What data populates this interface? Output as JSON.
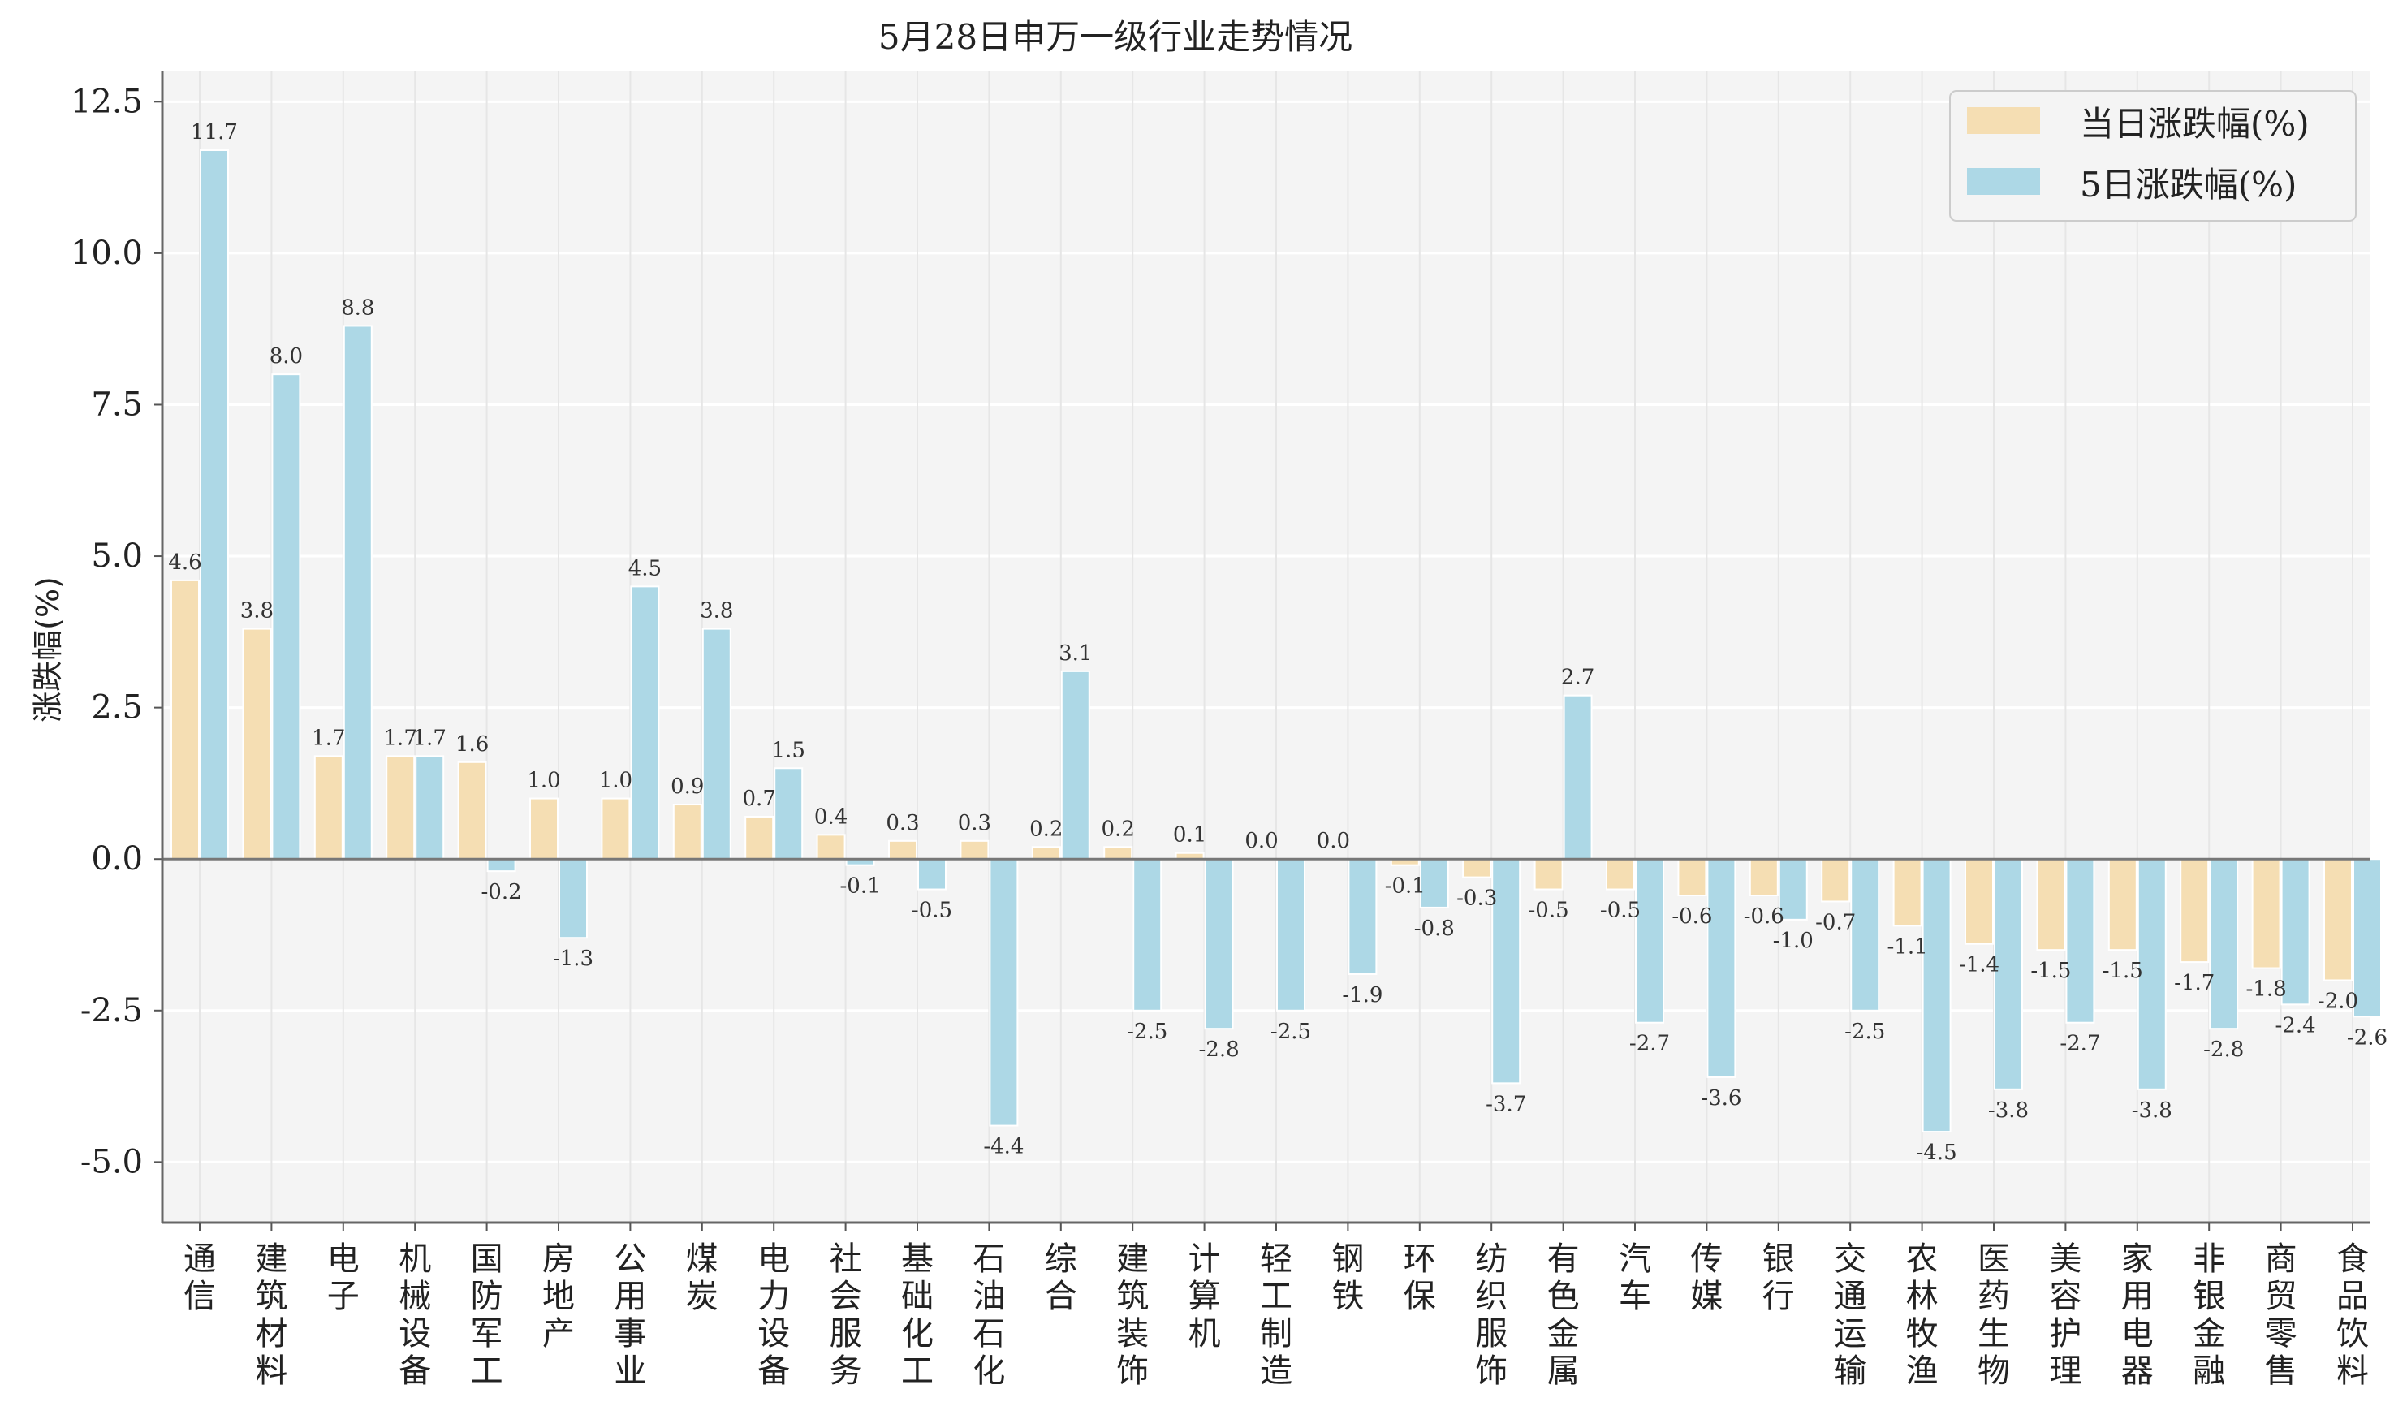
{
  "chart_data": {
    "type": "bar",
    "title": "5月28日申万一级行业走势情况",
    "ylabel": "涨跌幅(%)",
    "xlabel": "",
    "ylim": [
      -6,
      13
    ],
    "yticks": [
      "12.5",
      "10.0",
      "7.5",
      "5.0",
      "2.5",
      "0.0",
      "-2.5",
      "-5.0"
    ],
    "grid": true,
    "legend_position": "top-right",
    "categories": [
      "通信",
      "建筑材料",
      "电子",
      "机械设备",
      "国防军工",
      "房地产",
      "公用事业",
      "煤炭",
      "电力设备",
      "社会服务",
      "基础化工",
      "石油石化",
      "综合",
      "建筑装饰",
      "计算机",
      "轻工制造",
      "钢铁",
      "环保",
      "纺织服饰",
      "有色金属",
      "汽车",
      "传媒",
      "银行",
      "交通运输",
      "农林牧渔",
      "医药生物",
      "美容护理",
      "家用电器",
      "非银金融",
      "商贸零售",
      "食品饮料"
    ],
    "series": [
      {
        "name": "当日涨跌幅(%)",
        "color": "#f5deb3",
        "values": [
          4.6,
          3.8,
          1.7,
          1.7,
          1.6,
          1.0,
          1.0,
          0.9,
          0.7,
          0.4,
          0.3,
          0.3,
          0.2,
          0.2,
          0.1,
          0.0,
          0.0,
          -0.1,
          -0.3,
          -0.5,
          -0.5,
          -0.6,
          -0.6,
          -0.7,
          -1.1,
          -1.4,
          -1.5,
          -1.5,
          -1.7,
          -1.8,
          -2.0
        ],
        "labels": [
          "4.6",
          "3.8",
          "1.7",
          "1.7",
          "1.6",
          "1.0",
          "1.0",
          "0.9",
          "0.7",
          "0.4",
          "0.3",
          "0.3",
          "0.2",
          "0.2",
          "0.1",
          "0.0",
          "0.0",
          "-0.1",
          "-0.3",
          "-0.5",
          "-0.5",
          "-0.6",
          "-0.6",
          "-0.7",
          "-1.1",
          "-1.4",
          "-1.5",
          "-1.5",
          "-1.7",
          "-1.8",
          "-2.0"
        ]
      },
      {
        "name": "5日涨跌幅(%)",
        "color": "#add8e6",
        "values": [
          11.7,
          8.0,
          8.8,
          1.7,
          -0.2,
          -1.3,
          4.5,
          3.8,
          1.5,
          -0.1,
          -0.5,
          -4.4,
          3.1,
          -2.5,
          -2.8,
          -2.5,
          -1.9,
          -0.8,
          -3.7,
          2.7,
          -2.7,
          -3.6,
          -1.0,
          -2.5,
          -4.5,
          -3.8,
          -2.7,
          -3.8,
          -2.8,
          -2.4,
          -2.6
        ],
        "labels": [
          "11.7",
          "8.0",
          "8.8",
          "1.7",
          "-0.2",
          "-1.3",
          "4.5",
          "3.8",
          "1.5",
          "-0.1",
          "-0.5",
          "-4.4",
          "3.1",
          "-2.5",
          "-2.8",
          "-2.5",
          "-1.9",
          "-0.8",
          "-3.7",
          "2.7",
          "-2.7",
          "-3.6",
          "-1.0",
          "-2.5",
          "-4.5",
          "-3.8",
          "-2.7",
          "-3.8",
          "-2.8",
          "-2.4",
          "-2.6"
        ]
      }
    ]
  }
}
